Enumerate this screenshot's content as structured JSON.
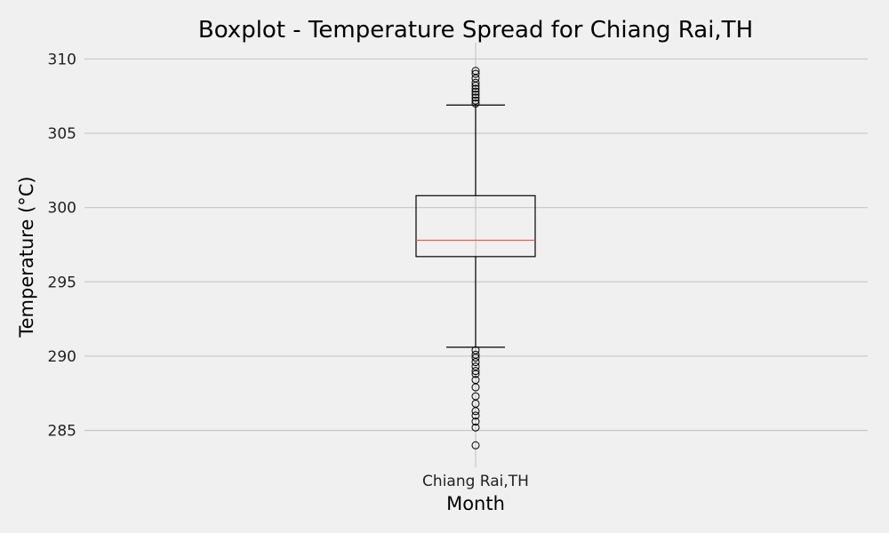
{
  "chart_data": {
    "type": "box",
    "title": "Boxplot - Temperature Spread for Chiang Rai,TH",
    "xlabel": "Month",
    "ylabel": "Temperature (°C)",
    "ylim": [
      283,
      310.5
    ],
    "yticks": [
      285,
      290,
      295,
      300,
      305,
      310
    ],
    "grid": "horizontal",
    "categories": [
      "Chiang Rai,TH"
    ],
    "box": {
      "q1": 296.7,
      "median": 297.8,
      "q3": 300.8,
      "whisker_low": 290.6,
      "whisker_high": 306.9
    },
    "outliers_high": [
      307.0,
      307.2,
      307.4,
      307.6,
      307.8,
      308.0,
      308.2,
      308.4,
      308.7,
      309.0,
      309.2
    ],
    "outliers_low": [
      290.4,
      290.1,
      289.9,
      289.6,
      289.3,
      289.0,
      288.8,
      288.4,
      287.9,
      287.3,
      286.8,
      286.3,
      286.0,
      285.6,
      285.2,
      284.0
    ],
    "colors": {
      "background": "#f0f0f0",
      "grid": "#cbcbcb",
      "box": "#000000",
      "median": "#fc4f30"
    }
  }
}
